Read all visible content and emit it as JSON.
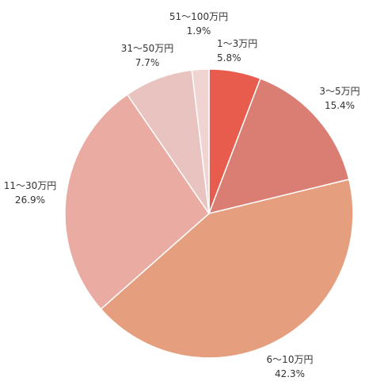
{
  "chart_data": {
    "type": "pie",
    "title": "",
    "start_angle_deg": 0,
    "direction": "clockwise",
    "slices": [
      {
        "label": "1〜3万円",
        "value": 5.8,
        "value_label": "5.8%",
        "color": "#E85C4E"
      },
      {
        "label": "3〜5万円",
        "value": 15.4,
        "value_label": "15.4%",
        "color": "#DA7E74"
      },
      {
        "label": "6〜10万円",
        "value": 42.3,
        "value_label": "42.3%",
        "color": "#E59E7E"
      },
      {
        "label": "11〜30万円",
        "value": 26.9,
        "value_label": "26.9%",
        "color": "#EAABA3"
      },
      {
        "label": "31〜50万円",
        "value": 7.7,
        "value_label": "7.7%",
        "color": "#E9C3BF"
      },
      {
        "label": "51〜100万円",
        "value": 1.9,
        "value_label": "1.9%",
        "color": "#F0D4D2"
      }
    ]
  }
}
